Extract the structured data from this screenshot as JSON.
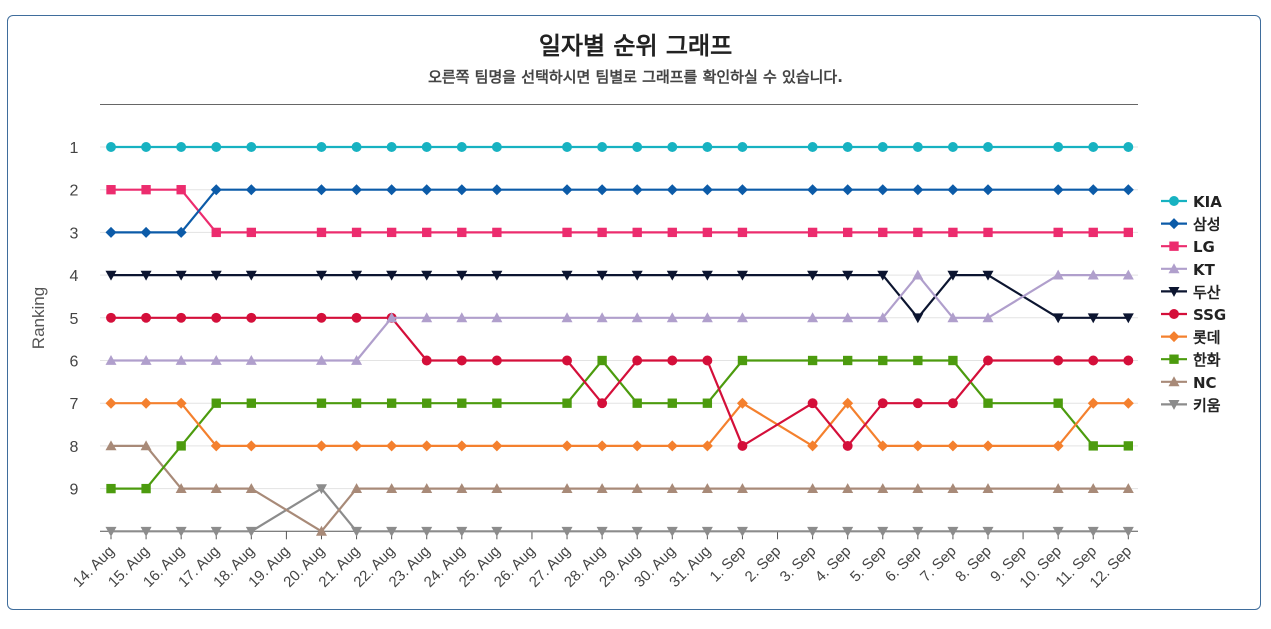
{
  "title": "일자별 순위 그래프",
  "subtitle": "오른쪽 팀명을 선택하시면 팀별로 그래프를 확인하실 수 있습니다.",
  "chart_data": {
    "type": "line",
    "ylabel": "Ranking",
    "y_ticks": [
      "1",
      "2",
      "3",
      "4",
      "5",
      "6",
      "7",
      "8",
      "9"
    ],
    "ylim": [
      1,
      10
    ],
    "y_reversed": true,
    "grid": true,
    "legend_position": "right",
    "categories": [
      "14. Aug",
      "15. Aug",
      "16. Aug",
      "17. Aug",
      "18. Aug",
      "19. Aug",
      "20. Aug",
      "21. Aug",
      "22. Aug",
      "23. Aug",
      "24. Aug",
      "25. Aug",
      "26. Aug",
      "27. Aug",
      "28. Aug",
      "29. Aug",
      "30. Aug",
      "31. Aug",
      "1. Sep",
      "2. Sep",
      "3. Sep",
      "4. Sep",
      "5. Sep",
      "6. Sep",
      "7. Sep",
      "8. Sep",
      "9. Sep",
      "10. Sep",
      "11. Sep",
      "12. Sep"
    ],
    "series": [
      {
        "name": "KIA",
        "color": "#17b2c1",
        "marker": "circle",
        "values": [
          1,
          1,
          1,
          1,
          1,
          null,
          1,
          1,
          1,
          1,
          1,
          1,
          null,
          1,
          1,
          1,
          1,
          1,
          1,
          null,
          1,
          1,
          1,
          1,
          1,
          1,
          null,
          1,
          1,
          1
        ]
      },
      {
        "name": "삼성",
        "color": "#0c5ba8",
        "marker": "diamond",
        "values": [
          3,
          3,
          3,
          2,
          2,
          null,
          2,
          2,
          2,
          2,
          2,
          2,
          null,
          2,
          2,
          2,
          2,
          2,
          2,
          null,
          2,
          2,
          2,
          2,
          2,
          2,
          null,
          2,
          2,
          2
        ]
      },
      {
        "name": "LG",
        "color": "#ec2c6e",
        "marker": "square",
        "values": [
          2,
          2,
          2,
          3,
          3,
          null,
          3,
          3,
          3,
          3,
          3,
          3,
          null,
          3,
          3,
          3,
          3,
          3,
          3,
          null,
          3,
          3,
          3,
          3,
          3,
          3,
          null,
          3,
          3,
          3
        ]
      },
      {
        "name": "KT",
        "color": "#b09fcc",
        "marker": "triangle-up",
        "values": [
          6,
          6,
          6,
          6,
          6,
          null,
          6,
          6,
          5,
          5,
          5,
          5,
          null,
          5,
          5,
          5,
          5,
          5,
          5,
          null,
          5,
          5,
          5,
          4,
          5,
          5,
          null,
          4,
          4,
          4
        ]
      },
      {
        "name": "두산",
        "color": "#0c1530",
        "marker": "triangle-down",
        "values": [
          4,
          4,
          4,
          4,
          4,
          null,
          4,
          4,
          4,
          4,
          4,
          4,
          null,
          4,
          4,
          4,
          4,
          4,
          4,
          null,
          4,
          4,
          4,
          5,
          4,
          4,
          null,
          5,
          5,
          5
        ]
      },
      {
        "name": "SSG",
        "color": "#d40f3a",
        "marker": "circle",
        "values": [
          5,
          5,
          5,
          5,
          5,
          null,
          5,
          5,
          5,
          6,
          6,
          6,
          null,
          6,
          7,
          6,
          6,
          6,
          8,
          null,
          7,
          8,
          7,
          7,
          7,
          6,
          null,
          6,
          6,
          6
        ]
      },
      {
        "name": "롯데",
        "color": "#f4802e",
        "marker": "diamond",
        "values": [
          7,
          7,
          7,
          8,
          8,
          null,
          8,
          8,
          8,
          8,
          8,
          8,
          null,
          8,
          8,
          8,
          8,
          8,
          7,
          null,
          8,
          7,
          8,
          8,
          8,
          8,
          null,
          8,
          7,
          7
        ]
      },
      {
        "name": "한화",
        "color": "#4c9b0e",
        "marker": "square",
        "values": [
          9,
          9,
          8,
          7,
          7,
          null,
          7,
          7,
          7,
          7,
          7,
          7,
          null,
          7,
          6,
          7,
          7,
          7,
          6,
          null,
          6,
          6,
          6,
          6,
          6,
          7,
          null,
          7,
          8,
          8
        ]
      },
      {
        "name": "NC",
        "color": "#a88a78",
        "marker": "triangle-up",
        "values": [
          8,
          8,
          9,
          9,
          9,
          null,
          10,
          9,
          9,
          9,
          9,
          9,
          null,
          9,
          9,
          9,
          9,
          9,
          9,
          null,
          9,
          9,
          9,
          9,
          9,
          9,
          null,
          9,
          9,
          9
        ]
      },
      {
        "name": "키움",
        "color": "#8c8c8c",
        "marker": "triangle-down",
        "values": [
          10,
          10,
          10,
          10,
          10,
          null,
          9,
          10,
          10,
          10,
          10,
          10,
          null,
          10,
          10,
          10,
          10,
          10,
          10,
          null,
          10,
          10,
          10,
          10,
          10,
          10,
          null,
          10,
          10,
          10
        ]
      }
    ]
  }
}
